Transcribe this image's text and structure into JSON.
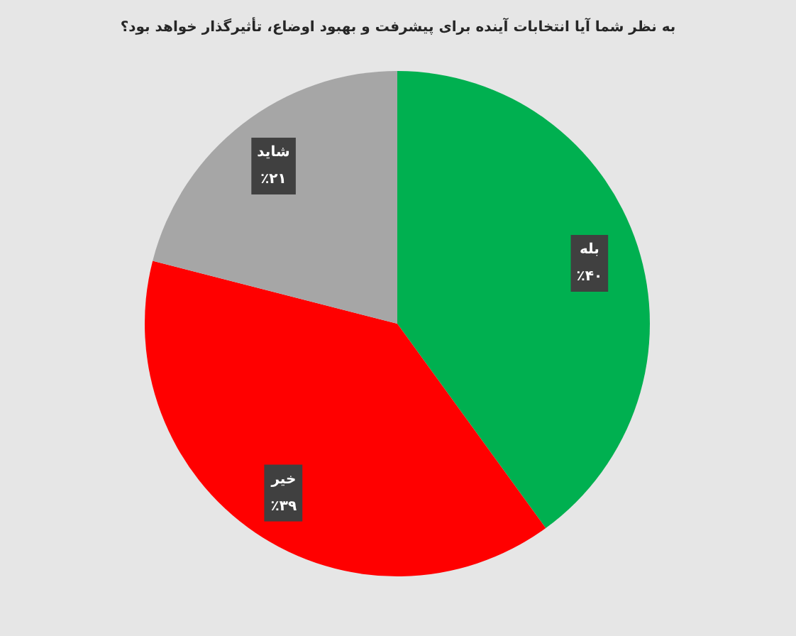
{
  "chart_data": {
    "type": "pie",
    "title": "به نظر شما آیا انتخابات آینده برای پیشرفت و بهبود اوضاع، تأثیرگذار خواهد بود؟",
    "categories": [
      "بله",
      "خیر",
      "شاید"
    ],
    "values": [
      40,
      39,
      21
    ],
    "colors": [
      "#00b050",
      "#ff0000",
      "#a6a6a6"
    ],
    "value_labels": [
      "٪۴۰",
      "٪۳۹",
      "٪۲۱"
    ]
  }
}
